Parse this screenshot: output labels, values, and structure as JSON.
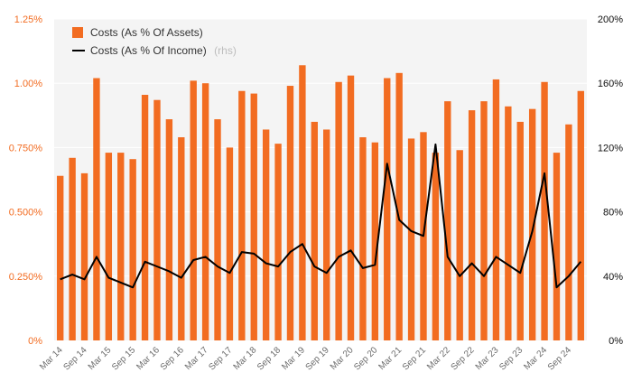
{
  "chart_data": {
    "type": "bar+line",
    "title": "",
    "xlabel": "",
    "colors": {
      "bars": "#f26c21",
      "line": "#000000",
      "left_axis_text": "#f26c21",
      "right_axis_text": "#111111",
      "plot_bg": "#f4f4f4"
    },
    "left_axis": {
      "ylim": [
        0,
        1.25
      ],
      "ticks": [
        0,
        0.25,
        0.5,
        0.75,
        1.0,
        1.25
      ],
      "tick_labels": [
        "0%",
        "0.250%",
        "0.500%",
        "0.750%",
        "1.00%",
        "1.25%"
      ]
    },
    "right_axis": {
      "ylim": [
        0,
        200
      ],
      "ticks": [
        0,
        40,
        80,
        120,
        160,
        200
      ],
      "tick_labels": [
        "0%",
        "40%",
        "80%",
        "120%",
        "160%",
        "200%"
      ]
    },
    "x_tick_labels": [
      "Mar 14",
      "Sep 14",
      "Mar 15",
      "Sep 15",
      "Mar 16",
      "Sep 16",
      "Mar 17",
      "Sep 17",
      "Mar 18",
      "Sep 18",
      "Mar 19",
      "Sep 19",
      "Mar 20",
      "Sep 20",
      "Mar 21",
      "Sep 21",
      "Mar 22",
      "Sep 22",
      "Mar 23",
      "Sep 23",
      "Mar 24",
      "Sep 24"
    ],
    "legend": {
      "position": "top-left",
      "bar_label": "Costs (As % Of Assets)",
      "line_label": "Costs (As % Of Income)",
      "line_suffix": "(rhs)"
    },
    "series": [
      {
        "name": "Costs (As % Of Assets)",
        "type": "bar",
        "axis": "left",
        "values": [
          0.64,
          0.71,
          0.65,
          1.02,
          0.73,
          0.73,
          0.705,
          0.955,
          0.935,
          0.86,
          0.79,
          1.01,
          1.0,
          0.86,
          0.75,
          0.97,
          0.96,
          0.82,
          0.765,
          0.99,
          1.07,
          0.85,
          0.82,
          1.005,
          1.03,
          0.79,
          0.77,
          1.02,
          1.04,
          0.785,
          0.81,
          0.73,
          0.93,
          0.74,
          0.895,
          0.93,
          1.015,
          0.91,
          0.85,
          0.9,
          1.005,
          0.73,
          0.84,
          0.97
        ]
      },
      {
        "name": "Costs (As % Of Income)",
        "type": "line",
        "axis": "right",
        "values": [
          38,
          41,
          38,
          52,
          39,
          36,
          33,
          49,
          46,
          43,
          39,
          50,
          52,
          46,
          42,
          55,
          54,
          48,
          46,
          55,
          60,
          46,
          42,
          52,
          56,
          45,
          47,
          110,
          75,
          68,
          65,
          122,
          52,
          40,
          48,
          40,
          52,
          47,
          42,
          68,
          104,
          33,
          40,
          49
        ]
      }
    ]
  }
}
